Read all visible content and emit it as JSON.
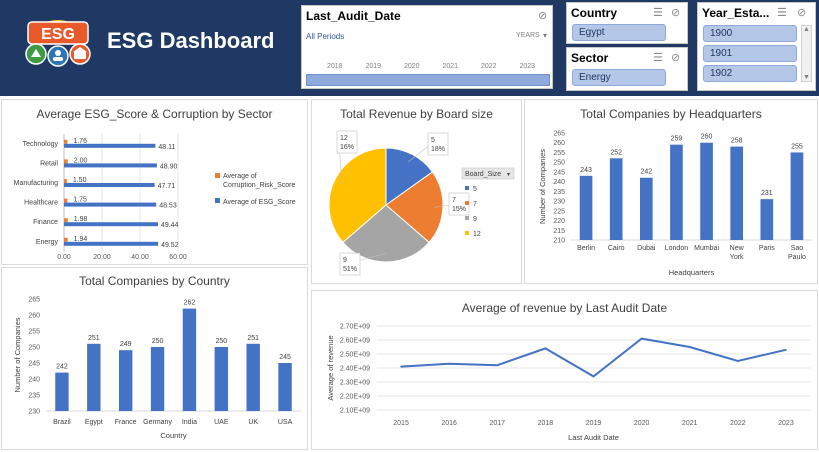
{
  "header": {
    "title": "ESG Dashboard",
    "logo_text": "ESG",
    "background": "#1f3864"
  },
  "slicers": {
    "audit": {
      "title": "Last_Audit_Date",
      "period": "All Periods",
      "unit": "YEARS",
      "years": [
        "2018",
        "2019",
        "2020",
        "2021",
        "2022",
        "2023"
      ]
    },
    "country": {
      "title": "Country",
      "selected": "Egypt"
    },
    "sector": {
      "title": "Sector",
      "selected": "Energy"
    },
    "year": {
      "title": "Year_Esta...",
      "items": [
        "1900",
        "1901",
        "1902"
      ]
    }
  },
  "colors": {
    "blue": "#4472c4",
    "orange": "#ed7d31",
    "gray": "#a5a5a5",
    "yellow": "#ffc000"
  },
  "chart_data": [
    {
      "id": "esg_sector",
      "type": "bar",
      "orientation": "horizontal",
      "title": "Average ESG_Score & Corruption by Sector",
      "categories": [
        "Technology",
        "Retail",
        "Manufacturing",
        "Healthcare",
        "Finance",
        "Energy"
      ],
      "series": [
        {
          "name": "Average of Corruption_Risk_Score",
          "values": [
            1.76,
            2.0,
            1.5,
            1.75,
            1.98,
            1.94
          ]
        },
        {
          "name": "Average of ESG_Score",
          "values": [
            48.11,
            48.9,
            47.71,
            48.53,
            49.44,
            49.52
          ]
        }
      ],
      "xlim": [
        0,
        60
      ],
      "xticks": [
        "0.00",
        "20.00",
        "40.00",
        "60.00"
      ],
      "legend": "right"
    },
    {
      "id": "revenue_board",
      "type": "pie",
      "title": "Total Revenue by Board size",
      "legend_title": "Board_Size",
      "slices": [
        {
          "label": "5",
          "value": 5,
          "pct": "18%"
        },
        {
          "label": "7",
          "value": 7,
          "pct": "15%"
        },
        {
          "label": "9",
          "value": 9,
          "pct": "51%"
        },
        {
          "label": "12",
          "value": 12,
          "pct": "16%"
        }
      ]
    },
    {
      "id": "hq",
      "type": "bar",
      "title": "Total Companies by Headquarters",
      "categories": [
        "Berlin",
        "Cairo",
        "Dubai",
        "London",
        "Mumbai",
        "New York",
        "Paris",
        "Sao Paulo"
      ],
      "values": [
        243,
        252,
        242,
        259,
        260,
        258,
        231,
        255
      ],
      "xlabel": "Headquarters",
      "ylabel": "Number of Companies",
      "ylim": [
        210,
        265
      ],
      "yticks": [
        "210",
        "215",
        "220",
        "225",
        "230",
        "235",
        "240",
        "245",
        "250",
        "255",
        "260",
        "265"
      ]
    },
    {
      "id": "country",
      "type": "bar",
      "title": "Total Companies by Country",
      "categories": [
        "Brazil",
        "Egypt",
        "France",
        "Germany",
        "India",
        "UAE",
        "UK",
        "USA"
      ],
      "values": [
        242,
        251,
        249,
        250,
        262,
        250,
        251,
        245
      ],
      "xlabel": "Country",
      "ylabel": "Number of Companies",
      "ylim": [
        230,
        265
      ],
      "yticks": [
        "230",
        "235",
        "240",
        "245",
        "250",
        "255",
        "260",
        "265"
      ]
    },
    {
      "id": "audit_revenue",
      "type": "line",
      "title": "Average of revenue by Last Audit Date",
      "x": [
        "2015",
        "2016",
        "2017",
        "2018",
        "2019",
        "2020",
        "2021",
        "2022",
        "2023"
      ],
      "values": [
        2410000000,
        2430000000,
        2420000000,
        2540000000,
        2340000000,
        2610000000,
        2550000000,
        2450000000,
        2530000000
      ],
      "xlabel": "Last Audit Date",
      "ylabel": "Average of revenue",
      "ylim": [
        2100000000,
        2700000000
      ],
      "yticks": [
        "2.10E+09",
        "2.20E+09",
        "2.30E+09",
        "2.40E+09",
        "2.50E+09",
        "2.60E+09",
        "2.70E+09"
      ]
    }
  ]
}
